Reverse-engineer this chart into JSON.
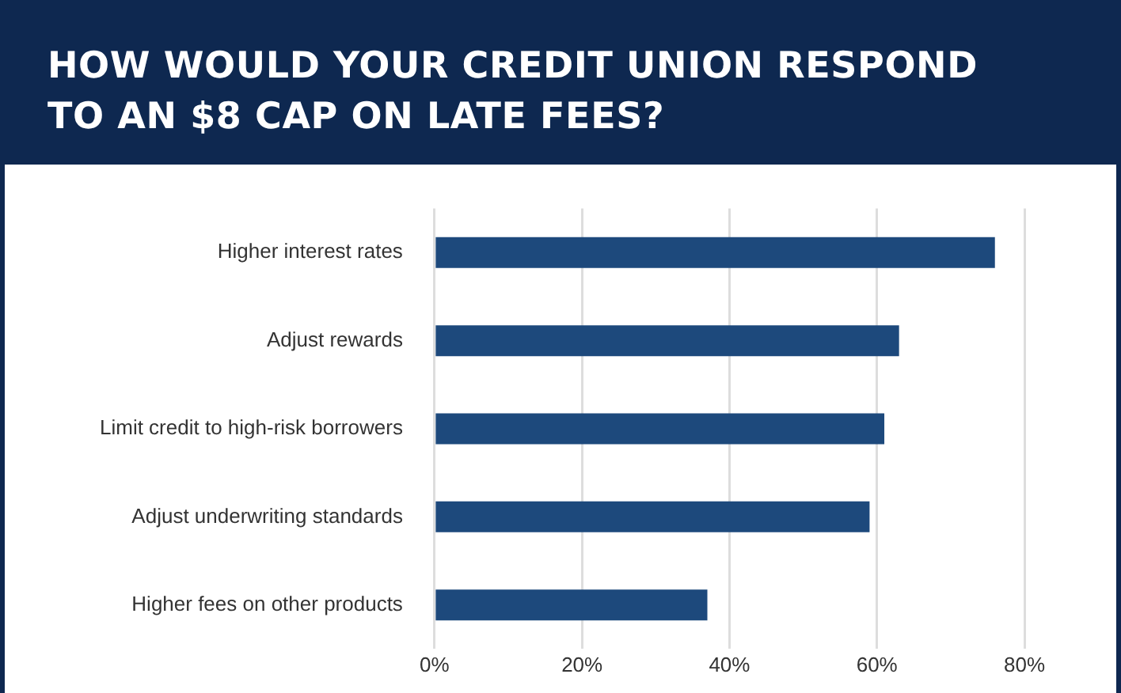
{
  "chart_data": {
    "type": "bar",
    "orientation": "horizontal",
    "title": "HOW WOULD YOUR CREDIT UNION RESPOND TO AN $8 CAP ON LATE FEES?",
    "categories": [
      "Higher interest rates",
      "Adjust rewards",
      "Limit credit to high-risk borrowers",
      "Adjust underwriting standards",
      "Higher fees on other products"
    ],
    "values": [
      76,
      63,
      61,
      59,
      37
    ],
    "color": "#1d497c",
    "xlim": [
      0,
      80
    ],
    "xticks": [
      {
        "value": 0,
        "label": "0%"
      },
      {
        "value": 20,
        "label": "20%"
      },
      {
        "value": 40,
        "label": "40%"
      },
      {
        "value": 60,
        "label": "60%"
      },
      {
        "value": 80,
        "label": "80%"
      }
    ],
    "grid": "x",
    "legend": false
  }
}
